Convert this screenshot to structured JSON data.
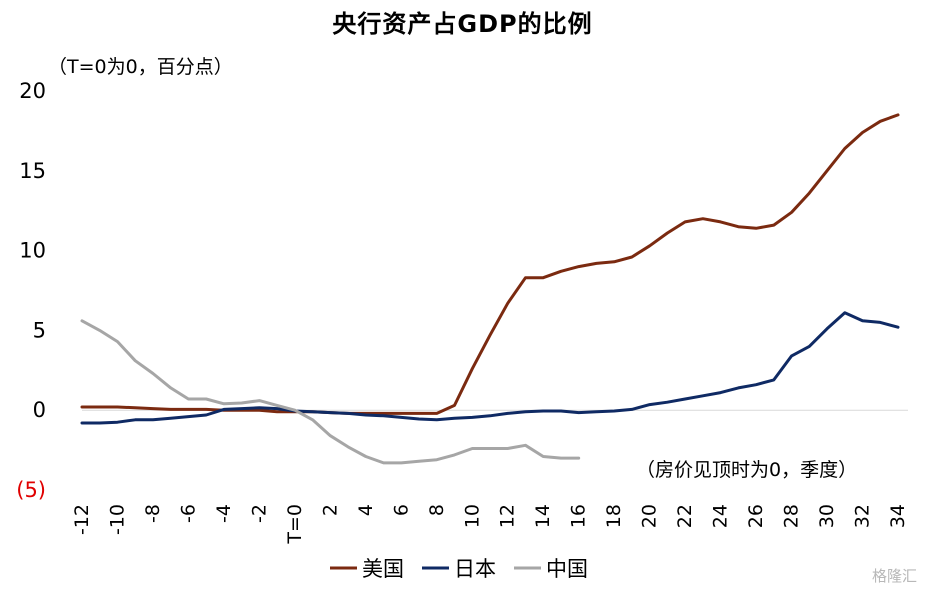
{
  "chart_data": {
    "type": "line",
    "title": "央行资产占GDP的比例",
    "ylabel": "（T=0为0，百分点）",
    "xlabel": "（房价见顶时为0，季度）",
    "ylim": [
      -5,
      20
    ],
    "yticks": [
      {
        "value": 20,
        "label": "20",
        "color": "#000000"
      },
      {
        "value": 15,
        "label": "15",
        "color": "#000000"
      },
      {
        "value": 10,
        "label": "10",
        "color": "#000000"
      },
      {
        "value": 5,
        "label": "5",
        "color": "#000000"
      },
      {
        "value": 0,
        "label": "0",
        "color": "#000000"
      },
      {
        "value": -5,
        "label": "(5)",
        "color": "#e00000"
      }
    ],
    "xlim": [
      -12,
      34
    ],
    "xticks": [
      {
        "value": -12,
        "label": "-12"
      },
      {
        "value": -10,
        "label": "-10"
      },
      {
        "value": -8,
        "label": "-8"
      },
      {
        "value": -6,
        "label": "-6"
      },
      {
        "value": -4,
        "label": "-4"
      },
      {
        "value": -2,
        "label": "-2"
      },
      {
        "value": 0,
        "label": "T=0"
      },
      {
        "value": 2,
        "label": "2"
      },
      {
        "value": 4,
        "label": "4"
      },
      {
        "value": 6,
        "label": "6"
      },
      {
        "value": 8,
        "label": "8"
      },
      {
        "value": 10,
        "label": "10"
      },
      {
        "value": 12,
        "label": "12"
      },
      {
        "value": 14,
        "label": "14"
      },
      {
        "value": 16,
        "label": "16"
      },
      {
        "value": 18,
        "label": "18"
      },
      {
        "value": 20,
        "label": "20"
      },
      {
        "value": 22,
        "label": "22"
      },
      {
        "value": 24,
        "label": "24"
      },
      {
        "value": 26,
        "label": "26"
      },
      {
        "value": 28,
        "label": "28"
      },
      {
        "value": 30,
        "label": "30"
      },
      {
        "value": 32,
        "label": "32"
      },
      {
        "value": 34,
        "label": "34"
      }
    ],
    "legend_position": "bottom",
    "grid": false,
    "series": [
      {
        "name": "美国",
        "color": "#7b2a10",
        "x": [
          -12,
          -11,
          -10,
          -9,
          -8,
          -7,
          -6,
          -5,
          -4,
          -3,
          -2,
          -1,
          0,
          1,
          2,
          3,
          4,
          5,
          6,
          7,
          8,
          9,
          10,
          11,
          12,
          13,
          14,
          15,
          16,
          17,
          18,
          19,
          20,
          21,
          22,
          23,
          24,
          25,
          26,
          27,
          28,
          29,
          30,
          31,
          32,
          33,
          34
        ],
        "y": [
          0.2,
          0.2,
          0.2,
          0.15,
          0.1,
          0.05,
          0.05,
          0.05,
          0.0,
          0.0,
          0.0,
          -0.1,
          -0.1,
          -0.1,
          -0.15,
          -0.2,
          -0.2,
          -0.2,
          -0.2,
          -0.2,
          -0.2,
          0.3,
          2.6,
          4.7,
          6.7,
          8.3,
          8.3,
          8.7,
          9.0,
          9.2,
          9.3,
          9.6,
          10.3,
          11.1,
          11.8,
          12.0,
          11.8,
          11.5,
          11.4,
          11.6,
          12.4,
          13.6,
          15.0,
          16.4,
          17.4,
          18.1,
          18.5
        ]
      },
      {
        "name": "日本",
        "color": "#0f2a64",
        "x": [
          -12,
          -11,
          -10,
          -9,
          -8,
          -7,
          -6,
          -5,
          -4,
          -3,
          -2,
          -1,
          0,
          1,
          2,
          3,
          4,
          5,
          6,
          7,
          8,
          9,
          10,
          11,
          12,
          13,
          14,
          15,
          16,
          17,
          18,
          19,
          20,
          21,
          22,
          23,
          24,
          25,
          26,
          27,
          28,
          29,
          30,
          31,
          32,
          33,
          34
        ],
        "y": [
          -0.8,
          -0.8,
          -0.75,
          -0.6,
          -0.6,
          -0.5,
          -0.4,
          -0.3,
          0.05,
          0.1,
          0.15,
          0.1,
          -0.05,
          -0.1,
          -0.15,
          -0.2,
          -0.3,
          -0.35,
          -0.45,
          -0.55,
          -0.6,
          -0.5,
          -0.45,
          -0.35,
          -0.2,
          -0.1,
          -0.05,
          -0.05,
          -0.15,
          -0.1,
          -0.05,
          0.05,
          0.35,
          0.5,
          0.7,
          0.9,
          1.1,
          1.4,
          1.6,
          1.9,
          3.4,
          4.0,
          5.1,
          6.1,
          5.6,
          5.5,
          5.2
        ]
      },
      {
        "name": "中国",
        "color": "#a6a6a6",
        "x": [
          -12,
          -11,
          -10,
          -9,
          -8,
          -7,
          -6,
          -5,
          -4,
          -3,
          -2,
          -1,
          0,
          1,
          2,
          3,
          4,
          5,
          6,
          7,
          8,
          9,
          10,
          11,
          12,
          13,
          14,
          15,
          16
        ],
        "y": [
          5.6,
          5.0,
          4.3,
          3.1,
          2.3,
          1.4,
          0.7,
          0.7,
          0.4,
          0.45,
          0.6,
          0.3,
          0.0,
          -0.6,
          -1.6,
          -2.3,
          -2.9,
          -3.3,
          -3.3,
          -3.2,
          -3.1,
          -2.8,
          -2.4,
          -2.4,
          -2.4,
          -2.2,
          -2.9,
          -3.0,
          -3.0
        ]
      }
    ]
  },
  "watermark": "格隆汇"
}
